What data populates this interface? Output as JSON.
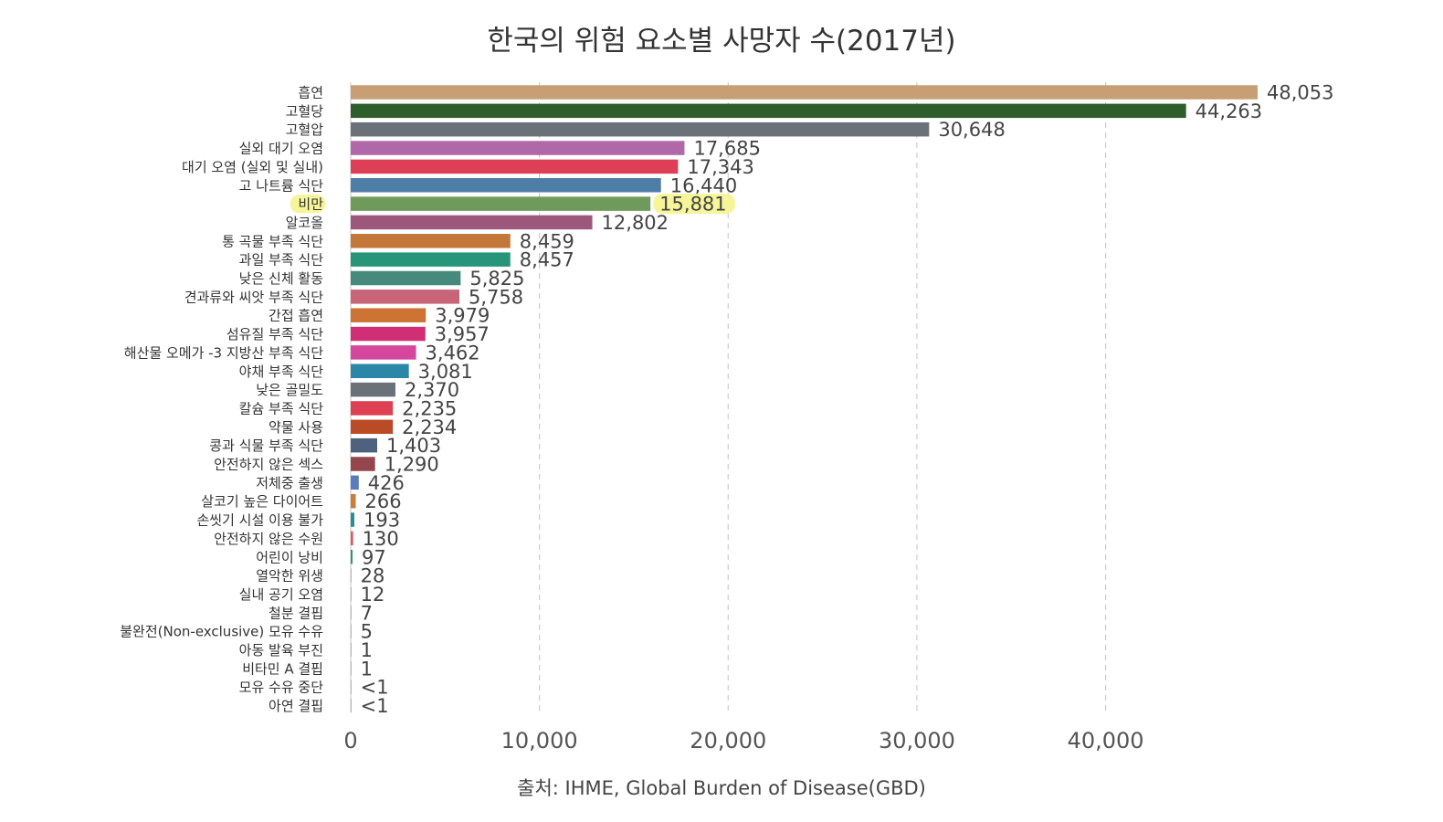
{
  "chart_data": {
    "type": "bar",
    "orientation": "horizontal",
    "title": "한국의 위험 요소별 사망자 수(2017년)",
    "source": "출처: IHME, Global Burden of Disease(GBD)",
    "xlim": [
      0,
      48053
    ],
    "grid": "vertical-dashed",
    "highlight_category": "비만",
    "highlight_color": "#f6f59a",
    "ticks": [
      {
        "value": 0,
        "label": "0"
      },
      {
        "value": 10000,
        "label": "10,000"
      },
      {
        "value": 20000,
        "label": "20,000"
      },
      {
        "value": 30000,
        "label": "30,000"
      },
      {
        "value": 40000,
        "label": "40,000"
      }
    ],
    "categories": [
      {
        "label": "흡연",
        "value": 48053,
        "value_label": "48,053",
        "color": "#c89f74"
      },
      {
        "label": "고혈당",
        "value": 44263,
        "value_label": "44,263",
        "color": "#2e5e2c"
      },
      {
        "label": "고혈압",
        "value": 30648,
        "value_label": "30,648",
        "color": "#6b7179"
      },
      {
        "label": "실외 대기 오염",
        "value": 17685,
        "value_label": "17,685",
        "color": "#b068a8"
      },
      {
        "label": "대기 오염 (실외 및 실내)",
        "value": 17343,
        "value_label": "17,343",
        "color": "#dd3f56"
      },
      {
        "label": "고 나트륨 식단",
        "value": 16440,
        "value_label": "16,440",
        "color": "#4e7ea6"
      },
      {
        "label": "비만",
        "value": 15881,
        "value_label": "15,881",
        "color": "#6f9a5b"
      },
      {
        "label": "알코올",
        "value": 12802,
        "value_label": "12,802",
        "color": "#9c577a"
      },
      {
        "label": "통 곡물 부족 식단",
        "value": 8459,
        "value_label": "8,459",
        "color": "#c3783a"
      },
      {
        "label": "과일 부족 식단",
        "value": 8457,
        "value_label": "8,457",
        "color": "#27957a"
      },
      {
        "label": "낮은 신체 활동",
        "value": 5825,
        "value_label": "5,825",
        "color": "#468a7c"
      },
      {
        "label": "견과류와 씨앗 부족 식단",
        "value": 5758,
        "value_label": "5,758",
        "color": "#c86578"
      },
      {
        "label": "간접 흡연",
        "value": 3979,
        "value_label": "3,979",
        "color": "#cd7434"
      },
      {
        "label": "섬유질 부족 식단",
        "value": 3957,
        "value_label": "3,957",
        "color": "#d02f76"
      },
      {
        "label": "해산물 오메가 -3 지방산 부족 식단",
        "value": 3462,
        "value_label": "3,462",
        "color": "#d4479c"
      },
      {
        "label": "야채 부족 식단",
        "value": 3081,
        "value_label": "3,081",
        "color": "#2c86a8"
      },
      {
        "label": "낮은 골밀도",
        "value": 2370,
        "value_label": "2,370",
        "color": "#6b7179"
      },
      {
        "label": "칼슘 부족 식단",
        "value": 2235,
        "value_label": "2,235",
        "color": "#dd4052"
      },
      {
        "label": "약물 사용",
        "value": 2234,
        "value_label": "2,234",
        "color": "#bb4a27"
      },
      {
        "label": "콩과 식물 부족 식단",
        "value": 1403,
        "value_label": "1,403",
        "color": "#4e617e"
      },
      {
        "label": "안전하지 않은 섹스",
        "value": 1290,
        "value_label": "1,290",
        "color": "#94454e"
      },
      {
        "label": "저체중 출생",
        "value": 426,
        "value_label": "426",
        "color": "#5a7cbd"
      },
      {
        "label": "살코기 높은 다이어트",
        "value": 266,
        "value_label": "266",
        "color": "#c67d3e"
      },
      {
        "label": "손씻기 시설 이용 불가",
        "value": 193,
        "value_label": "193",
        "color": "#2a8d8f"
      },
      {
        "label": "안전하지 않은 수원",
        "value": 130,
        "value_label": "130",
        "color": "#d65f66"
      },
      {
        "label": "어린이 낭비",
        "value": 97,
        "value_label": "97",
        "color": "#2f9664"
      },
      {
        "label": "열악한 위생",
        "value": 28,
        "value_label": "28",
        "color": "#8e8e8e"
      },
      {
        "label": "실내 공기 오염",
        "value": 12,
        "value_label": "12",
        "color": "#8e8e8e"
      },
      {
        "label": "철분 결핍",
        "value": 7,
        "value_label": "7",
        "color": "#8e8e8e"
      },
      {
        "label": "불완전(Non-exclusive) 모유 수유",
        "value": 5,
        "value_label": "5",
        "color": "#8e8e8e"
      },
      {
        "label": "아동 발육 부진",
        "value": 1,
        "value_label": "1",
        "color": "#8e8e8e"
      },
      {
        "label": "비타민 A 결핍",
        "value": 1,
        "value_label": "1",
        "color": "#8e8e8e"
      },
      {
        "label": "모유 수유 중단",
        "value": 0.5,
        "value_label": "<1",
        "color": "#8e8e8e"
      },
      {
        "label": "아연 결핍",
        "value": 0.5,
        "value_label": "<1",
        "color": "#8e8e8e"
      }
    ]
  }
}
